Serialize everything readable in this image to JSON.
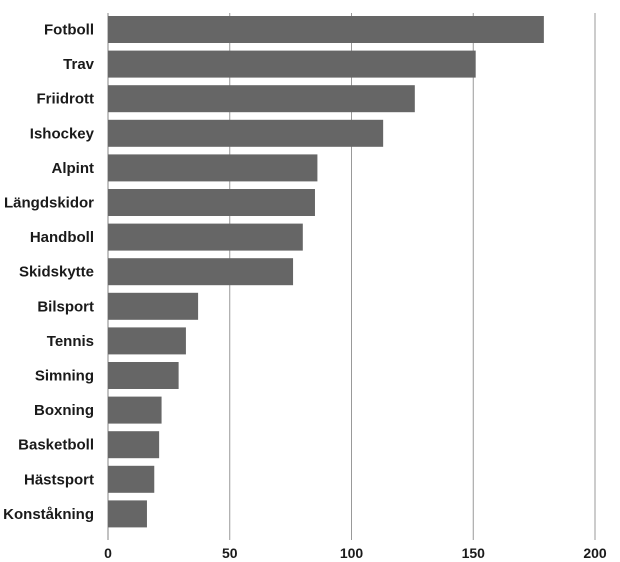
{
  "chart_data": {
    "type": "bar",
    "orientation": "horizontal",
    "categories": [
      "Fotboll",
      "Trav",
      "Friidrott",
      "Ishockey",
      "Alpint",
      "Längdskidor",
      "Handboll",
      "Skidskytte",
      "Bilsport",
      "Tennis",
      "Simning",
      "Boxning",
      "Basketboll",
      "Hästsport",
      "Konståkning"
    ],
    "values": [
      179,
      151,
      126,
      113,
      86,
      85,
      80,
      76,
      37,
      32,
      29,
      22,
      21,
      19,
      16
    ],
    "xlim": [
      0,
      200
    ],
    "xticks": [
      "0",
      "50",
      "100",
      "150",
      "200"
    ],
    "title": "",
    "xlabel": "",
    "ylabel": "",
    "grid": true,
    "bar_color": "#666666",
    "grid_color": "#999999"
  }
}
